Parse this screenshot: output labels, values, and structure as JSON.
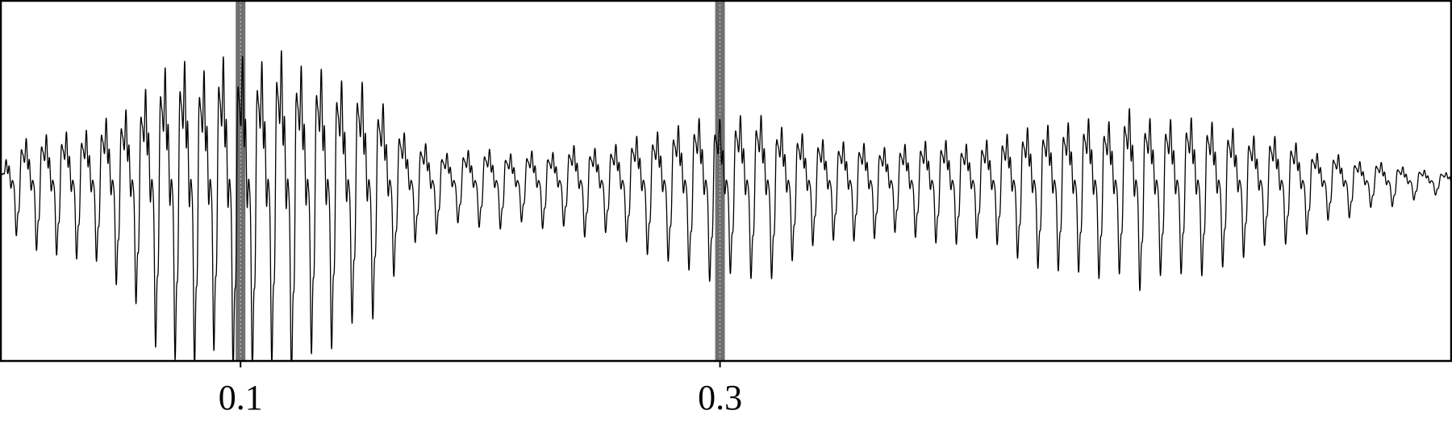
{
  "chart_data": {
    "type": "line",
    "title": "",
    "xlabel": "",
    "ylabel": "",
    "xlim": [
      0.0,
      0.605
    ],
    "ylim": [
      -1.0,
      1.0
    ],
    "grid": false,
    "legend": "none",
    "x_ticks": [
      {
        "value": 0.1,
        "label": "0.1"
      },
      {
        "value": 0.3,
        "label": "0.3"
      }
    ],
    "markers": [
      {
        "x": 0.1,
        "color": "#707070",
        "dotted_center": true
      },
      {
        "x": 0.3,
        "color": "#707070",
        "dotted_center": true
      }
    ],
    "series": [
      {
        "sample_rate": 16000,
        "color": "#000000",
        "envelope": [
          [
            0.0,
            0.05
          ],
          [
            0.004,
            0.3
          ],
          [
            0.02,
            0.38
          ],
          [
            0.04,
            0.45
          ],
          [
            0.055,
            0.58
          ],
          [
            0.065,
            0.9
          ],
          [
            0.08,
            1.0
          ],
          [
            0.1,
            1.0
          ],
          [
            0.12,
            1.0
          ],
          [
            0.14,
            0.9
          ],
          [
            0.16,
            0.6
          ],
          [
            0.17,
            0.32
          ],
          [
            0.185,
            0.25
          ],
          [
            0.22,
            0.23
          ],
          [
            0.255,
            0.3
          ],
          [
            0.28,
            0.45
          ],
          [
            0.3,
            0.55
          ],
          [
            0.33,
            0.45
          ],
          [
            0.345,
            0.3
          ],
          [
            0.38,
            0.3
          ],
          [
            0.42,
            0.35
          ],
          [
            0.44,
            0.48
          ],
          [
            0.47,
            0.55
          ],
          [
            0.5,
            0.5
          ],
          [
            0.52,
            0.4
          ],
          [
            0.545,
            0.26
          ],
          [
            0.575,
            0.14
          ],
          [
            0.605,
            0.06
          ]
        ],
        "pitch_hz": [
          [
            0.0,
            118
          ],
          [
            0.1,
            125
          ],
          [
            0.17,
            112
          ],
          [
            0.3,
            116
          ],
          [
            0.45,
            118
          ],
          [
            0.605,
            110
          ]
        ]
      }
    ]
  }
}
